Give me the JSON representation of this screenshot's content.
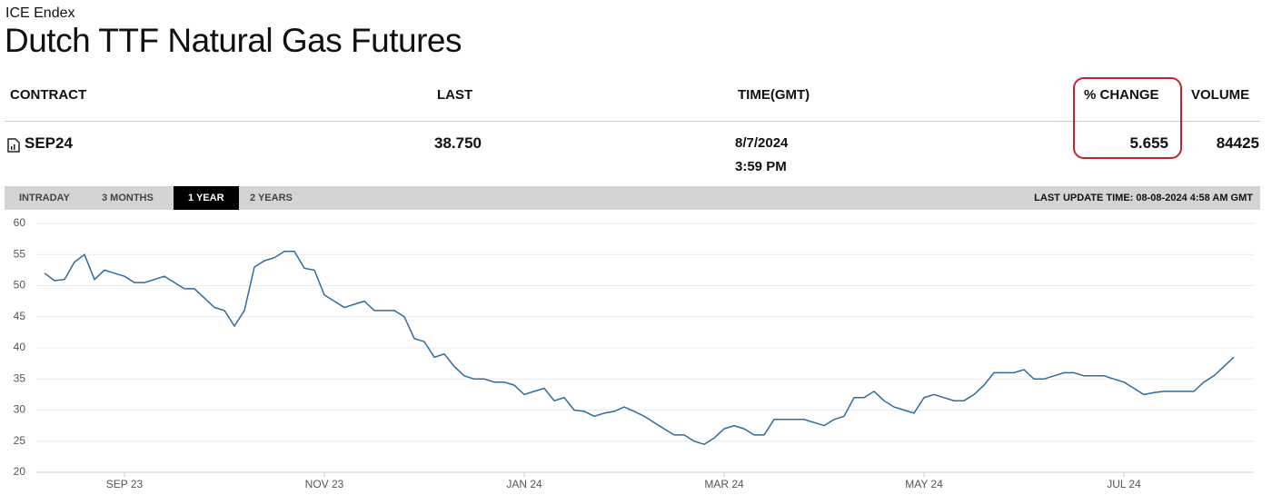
{
  "header": {
    "source": "ICE Endex",
    "title": "Dutch TTF Natural Gas Futures"
  },
  "table": {
    "columns": [
      "CONTRACT",
      "LAST",
      "TIME(GMT)",
      "% CHANGE",
      "VOLUME"
    ],
    "rows": [
      [
        "SEP24",
        "38.750",
        [
          "8/7/2024",
          "3:59 PM"
        ],
        "5.655",
        "84425"
      ]
    ]
  },
  "tabs": [
    "INTRADAY",
    "3 MONTHS",
    "1 YEAR",
    "2 YEARS"
  ],
  "active_tab": 2,
  "last_update": "LAST UPDATE TIME: 08-08-2024 4:58 AM GMT",
  "chart_data": {
    "type": "line",
    "color": "#2f6b9e",
    "grid": true,
    "ylim": [
      20,
      60
    ],
    "yticks": [
      20,
      25,
      30,
      35,
      40,
      45,
      50,
      55,
      60
    ],
    "categories": [
      null,
      null,
      null,
      null,
      null,
      null,
      null,
      null,
      "SEP 23",
      null,
      null,
      null,
      null,
      null,
      null,
      null,
      null,
      null,
      null,
      null,
      null,
      null,
      null,
      null,
      null,
      null,
      null,
      null,
      "NOV 23",
      null,
      null,
      null,
      null,
      null,
      null,
      null,
      null,
      null,
      null,
      null,
      null,
      null,
      null,
      null,
      null,
      null,
      null,
      null,
      "JAN 24",
      null,
      null,
      null,
      null,
      null,
      null,
      null,
      null,
      null,
      null,
      null,
      null,
      null,
      null,
      null,
      null,
      null,
      null,
      null,
      "MAR 24",
      null,
      null,
      null,
      null,
      null,
      null,
      null,
      null,
      null,
      null,
      null,
      null,
      null,
      null,
      null,
      null,
      null,
      null,
      null,
      "MAY 24",
      null,
      null,
      null,
      null,
      null,
      null,
      null,
      null,
      null,
      null,
      null,
      null,
      null,
      null,
      null,
      null,
      null,
      null,
      null,
      "JUL 24",
      null,
      null,
      null,
      null,
      null,
      null,
      null,
      null,
      null,
      null,
      null
    ],
    "values": [
      52,
      50.8,
      51,
      53.8,
      55,
      51,
      52.5,
      52,
      51.5,
      50.5,
      50.5,
      51,
      51.5,
      50.5,
      49.5,
      49.5,
      48,
      46.5,
      46,
      43.5,
      46,
      53,
      54,
      54.5,
      55.5,
      55.5,
      52.8,
      52.5,
      48.5,
      47.5,
      46.5,
      47,
      47.5,
      46,
      46,
      46,
      45,
      41.5,
      41,
      38.5,
      39,
      37,
      35.5,
      35,
      35,
      34.5,
      34.5,
      34,
      32.5,
      33,
      33.5,
      31.5,
      32,
      30,
      29.8,
      29,
      29.5,
      29.8,
      30.5,
      29.8,
      29,
      28,
      27,
      26,
      26,
      25,
      24.5,
      25.5,
      27,
      27.5,
      27,
      26,
      26,
      28.5,
      28.5,
      28.5,
      28.5,
      28,
      27.5,
      28.5,
      29,
      32,
      32,
      33,
      31.5,
      30.5,
      30,
      29.5,
      32,
      32.5,
      32,
      31.5,
      31.5,
      32.5,
      34,
      36,
      36,
      36,
      36.5,
      35,
      35,
      35.5,
      36,
      36,
      35.5,
      35.5,
      35.5,
      35,
      34.5,
      33.5,
      32.5,
      32.8,
      33,
      33,
      33,
      33,
      34.5,
      35.5,
      37,
      38.5
    ]
  }
}
